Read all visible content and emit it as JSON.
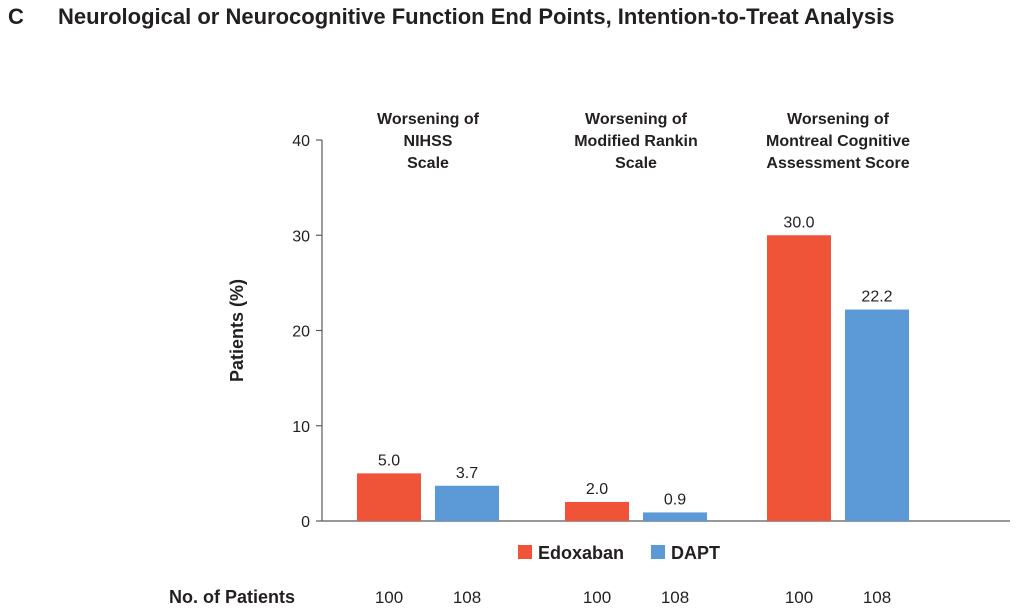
{
  "panel_letter": "C",
  "figure_title": "Neurological or Neurocognitive Function End Points, Intention-to-Treat Analysis",
  "colors": {
    "Edoxaban": "#ef5438",
    "DAPT": "#5b9ad6",
    "axis": "#595959"
  },
  "chart_data": {
    "type": "bar",
    "title": "Neurological or Neurocognitive Function End Points, Intention-to-Treat Analysis",
    "ylabel": "Patients  (%)",
    "xlabel": "",
    "ylim": [
      0,
      40
    ],
    "yticks": [
      0,
      10,
      20,
      30,
      40
    ],
    "categories": [
      [
        "Worsening of",
        "NIHSS",
        "Scale"
      ],
      [
        "Worsening of",
        "Modified Rankin",
        "Scale"
      ],
      [
        "Worsening of",
        "Montreal Cognitive",
        "Assessment Score"
      ]
    ],
    "series": [
      {
        "name": "Edoxaban",
        "values": [
          5.0,
          2.0,
          30.0
        ],
        "labels": [
          "5.0",
          "2.0",
          "30.0"
        ]
      },
      {
        "name": "DAPT",
        "values": [
          3.7,
          0.9,
          22.2
        ],
        "labels": [
          "3.7",
          "0.9",
          "22.2"
        ]
      }
    ],
    "legend_position": "bottom",
    "grid": false,
    "patients_row": {
      "title": "No. of Patients",
      "values": [
        [
          "100",
          "108"
        ],
        [
          "100",
          "108"
        ],
        [
          "100",
          "108"
        ]
      ]
    }
  }
}
